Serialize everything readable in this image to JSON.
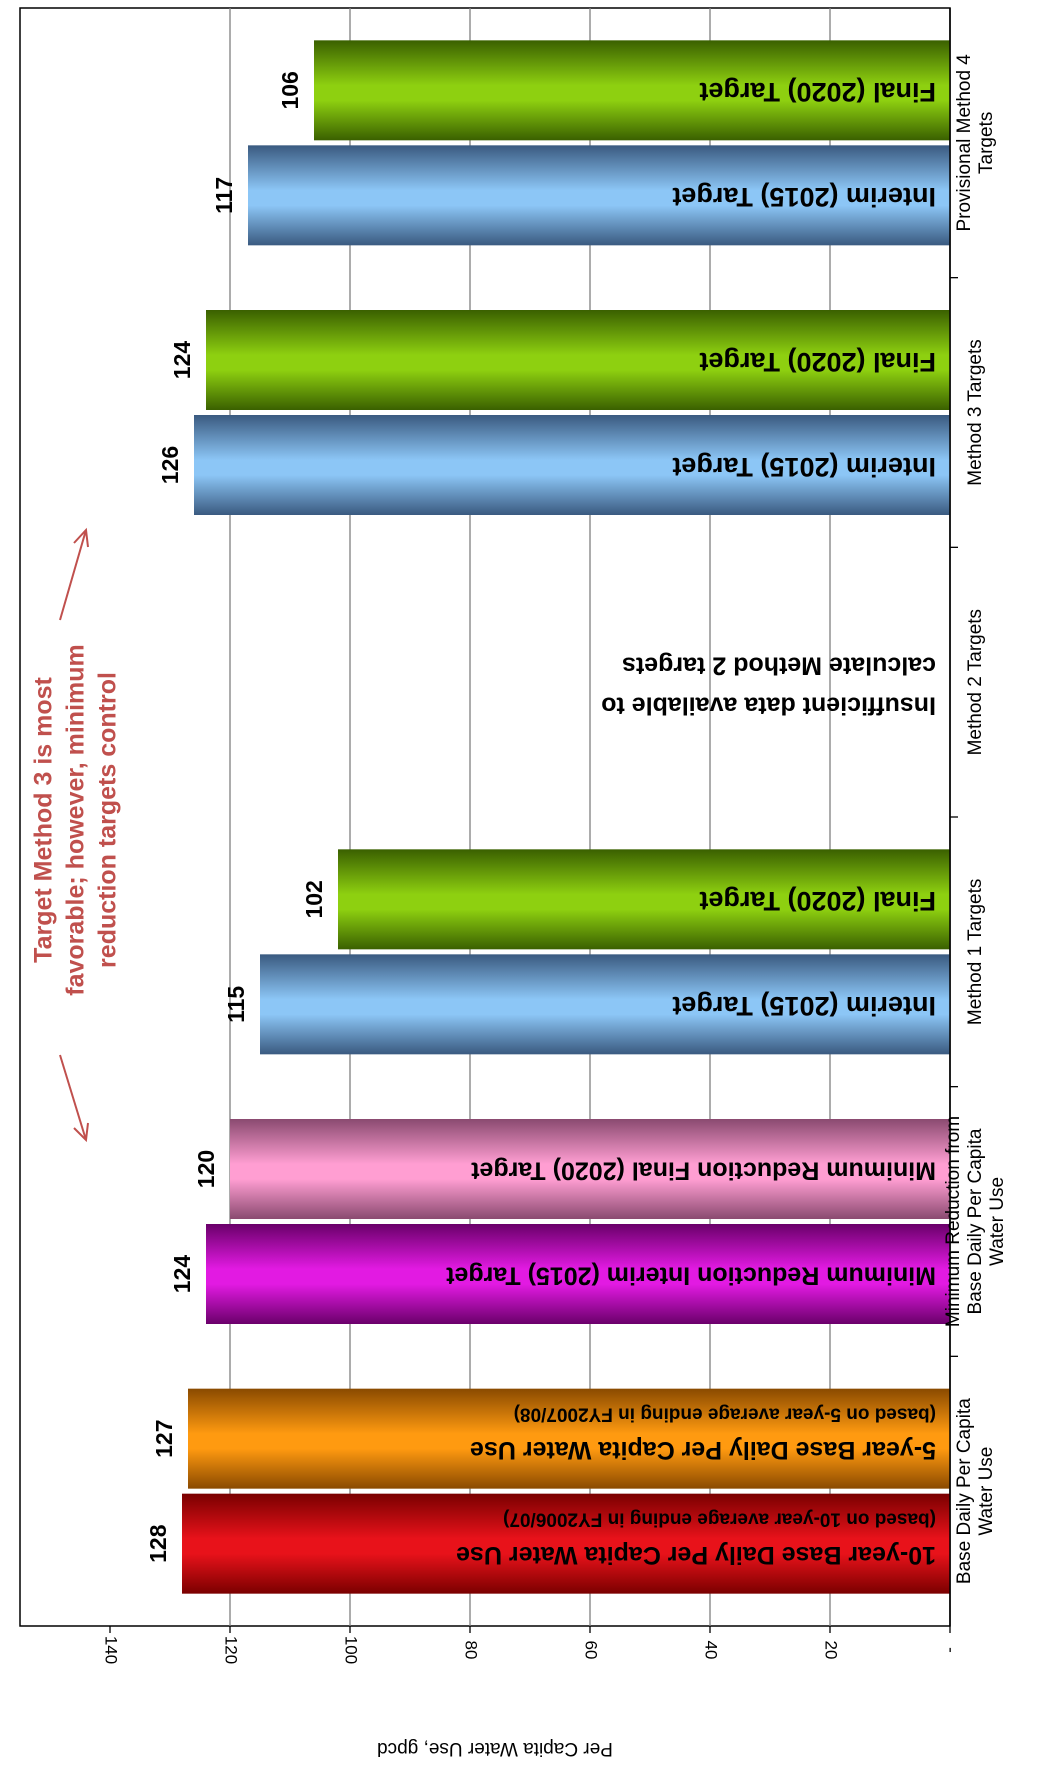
{
  "chart_data": {
    "type": "bar",
    "ylabel": "Per Capita Water Use, gpcd",
    "ylim": [
      0,
      140
    ],
    "yticks": [
      {
        "value": 0,
        "label": "-"
      },
      {
        "value": 20,
        "label": "20"
      },
      {
        "value": 40,
        "label": "40"
      },
      {
        "value": 60,
        "label": "60"
      },
      {
        "value": 80,
        "label": "80"
      },
      {
        "value": 100,
        "label": "100"
      },
      {
        "value": 120,
        "label": "120"
      },
      {
        "value": 140,
        "label": "140"
      }
    ],
    "grid": true,
    "categories": [
      {
        "name": "base",
        "label": [
          "Base Daily Per Capita",
          "Water Use"
        ]
      },
      {
        "name": "minimum-reduction",
        "label": [
          "Minimum Reduction from",
          "Base Daily Per Capita",
          "Water Use"
        ]
      },
      {
        "name": "method-1",
        "label": [
          "Method 1 Targets"
        ]
      },
      {
        "name": "method-2",
        "label": [
          "Method 2 Targets"
        ]
      },
      {
        "name": "method-3",
        "label": [
          "Method 3 Targets"
        ]
      },
      {
        "name": "method-4",
        "label": [
          "Provisional Method 4",
          "Targets"
        ]
      }
    ],
    "bars": [
      {
        "category": "base",
        "value": 128,
        "data_label": "128",
        "color": "#e8121a",
        "dark": "#7a0000",
        "label_lines": [
          "10-year Base Daily Per Capita Water Use",
          "(based on 10-year average ending in FY2006/07)"
        ]
      },
      {
        "category": "base",
        "value": 127,
        "data_label": "127",
        "color": "#ff9a10",
        "dark": "#8a4a00",
        "label_lines": [
          "5-year Base Daily Per Capita Water Use",
          "(based on 5-year average ending in FY2007/08)"
        ]
      },
      {
        "category": "minimum-reduction",
        "value": 124,
        "data_label": "124",
        "color": "#e21ae2",
        "dark": "#6a006a",
        "label_lines": [
          "Minimum  Reduction Interim (2015) Target"
        ]
      },
      {
        "category": "minimum-reduction",
        "value": 120,
        "data_label": "120",
        "color": "#ff9ed2",
        "dark": "#8a4a70",
        "label_lines": [
          "Minimum  Reduction Final (2020) Target"
        ]
      },
      {
        "category": "method-1",
        "value": 115,
        "data_label": "115",
        "color": "#8cc6f6",
        "dark": "#3a5a80",
        "label_lines": [
          "Interim (2015) Target"
        ]
      },
      {
        "category": "method-1",
        "value": 102,
        "data_label": "102",
        "color": "#8ed010",
        "dark": "#3a6000",
        "label_lines": [
          "Final (2020) Target"
        ]
      },
      {
        "category": "method-3",
        "value": 126,
        "data_label": "126",
        "color": "#8cc6f6",
        "dark": "#3a5a80",
        "label_lines": [
          "Interim (2015) Target"
        ]
      },
      {
        "category": "method-3",
        "value": 124,
        "data_label": "124",
        "color": "#8ed010",
        "dark": "#3a6000",
        "label_lines": [
          "Final (2020) Target"
        ]
      },
      {
        "category": "method-4",
        "value": 117,
        "data_label": "117",
        "color": "#8cc6f6",
        "dark": "#3a5a80",
        "label_lines": [
          "Interim (2015) Target"
        ]
      },
      {
        "category": "method-4",
        "value": 106,
        "data_label": "106",
        "color": "#8ed010",
        "dark": "#3a6000",
        "label_lines": [
          "Final (2020) Target"
        ]
      }
    ],
    "method2_note": [
      "Insufficient data available to",
      "calculate Method 2 targets"
    ],
    "annotation": [
      "Target Method 3 is most",
      "favorable; however, minimum",
      "reduction targets control"
    ],
    "annotation_color": "#c0504d"
  }
}
